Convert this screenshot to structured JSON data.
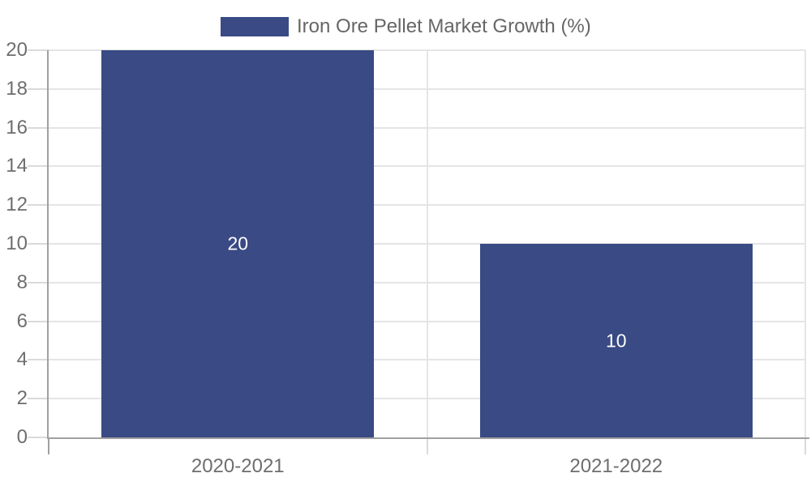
{
  "chart_data": {
    "type": "bar",
    "title": "Iron Ore Pellet Market Growth (%)",
    "categories": [
      "2020-2021",
      "2021-2022"
    ],
    "series": [
      {
        "name": "Iron Ore Pellet Market Growth (%)",
        "values": [
          20,
          10
        ]
      }
    ],
    "values": [
      20,
      10
    ],
    "data_labels": [
      "20",
      "10"
    ],
    "xlabel": "",
    "ylabel": "",
    "ylim": [
      0,
      20
    ],
    "yticks": [
      0,
      2,
      4,
      6,
      8,
      10,
      12,
      14,
      16,
      18,
      20
    ],
    "grid": true,
    "legend_position": "top-center",
    "colors": {
      "bar": "#394a84",
      "grid": "#e5e5e5",
      "axis_line": "#a0a0a0",
      "tick": "#dadada",
      "axis_text": "#6e6e6e",
      "legend_text": "#666666",
      "data_label": "#ffffff",
      "background": "#ffffff"
    }
  }
}
